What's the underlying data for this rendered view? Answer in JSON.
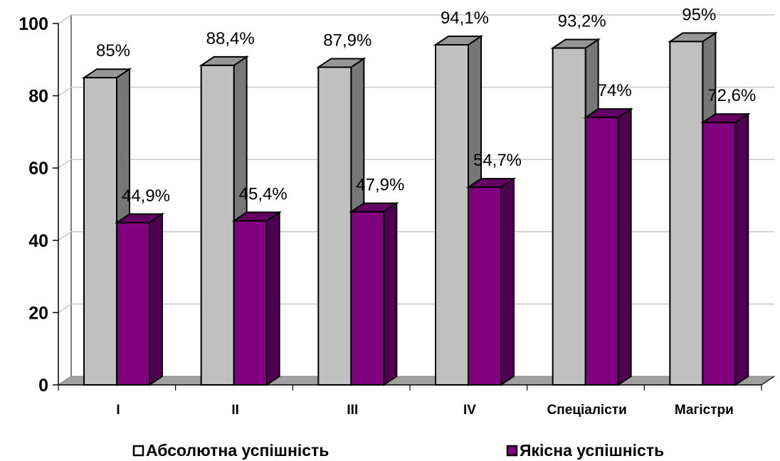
{
  "chart_data": {
    "type": "bar",
    "categories": [
      "I",
      "II",
      "III",
      "IV",
      "Спеціалісти",
      "Магістри"
    ],
    "series": [
      {
        "name": "Абсолютна успішність",
        "values": [
          85,
          88.4,
          87.9,
          94.1,
          93.2,
          95
        ],
        "labels": [
          "85%",
          "88,4%",
          "87,9%",
          "94,1%",
          "93,2%",
          "95%"
        ],
        "color": "#c0c0c0"
      },
      {
        "name": "Якісна успішність",
        "values": [
          44.9,
          45.4,
          47.9,
          54.7,
          74,
          72.6
        ],
        "labels": [
          "44,9%",
          "45,4%",
          "47,9%",
          "54,7%",
          "74%",
          "72,6%"
        ],
        "color": "#800080"
      }
    ],
    "yticks": [
      "0",
      "20",
      "40",
      "60",
      "80",
      "100"
    ],
    "ylim": [
      0,
      100
    ],
    "grid": true,
    "legend_position": "bottom",
    "three_d": true
  }
}
